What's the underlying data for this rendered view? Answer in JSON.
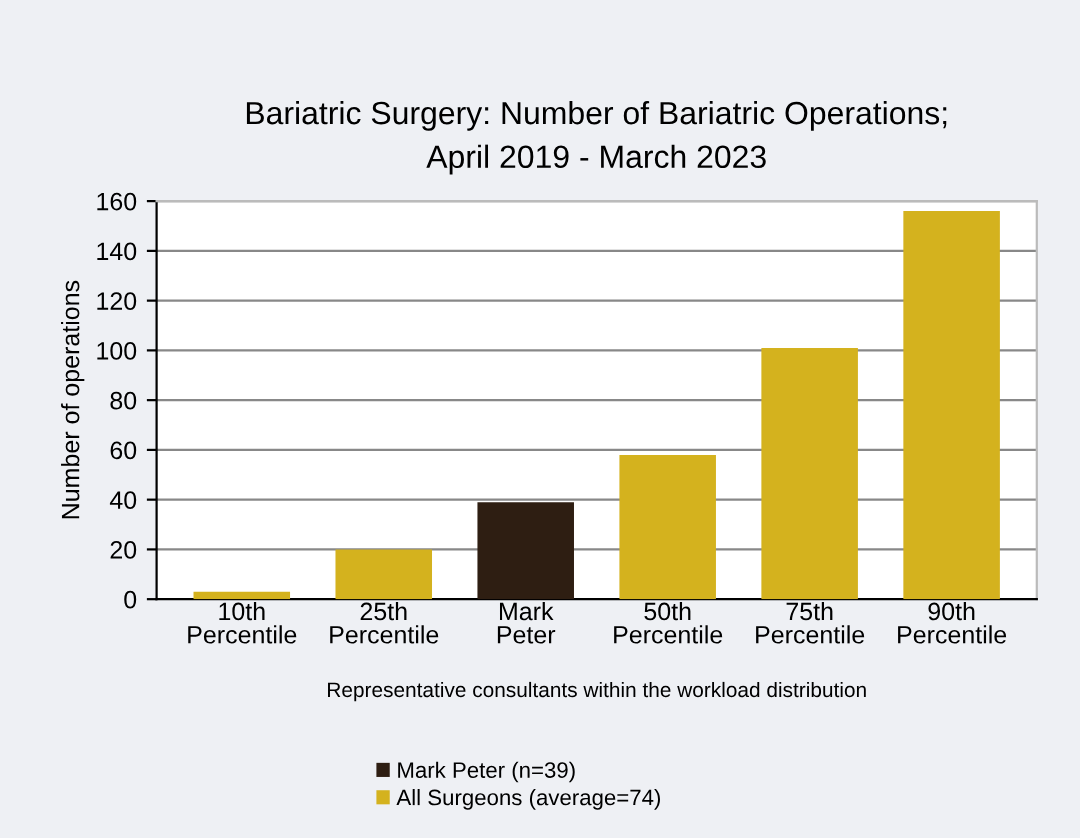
{
  "chart_data": {
    "type": "bar",
    "title": "Bariatric Surgery: Number of Bariatric Operations;\nApril 2019 - March 2023",
    "xlabel": "Representative consultants within the workload distribution",
    "ylabel": "Number of operations",
    "categories": [
      "10th\nPercentile",
      "25th\nPercentile",
      "Mark\nPeter",
      "50th\nPercentile",
      "75th\nPercentile",
      "90th\nPercentile"
    ],
    "series": [
      {
        "name": "Mark Peter (n=39)",
        "color": "#2e1e12",
        "values": [
          null,
          null,
          39,
          null,
          null,
          null
        ]
      },
      {
        "name": "All Surgeons (average=74)",
        "color": "#d4b21e",
        "values": [
          3,
          20,
          null,
          58,
          101,
          156
        ]
      }
    ],
    "ylim": [
      0,
      160
    ],
    "yticks": [
      0,
      20,
      40,
      60,
      80,
      100,
      120,
      140,
      160
    ],
    "grid": "y",
    "legend": "bottom"
  }
}
